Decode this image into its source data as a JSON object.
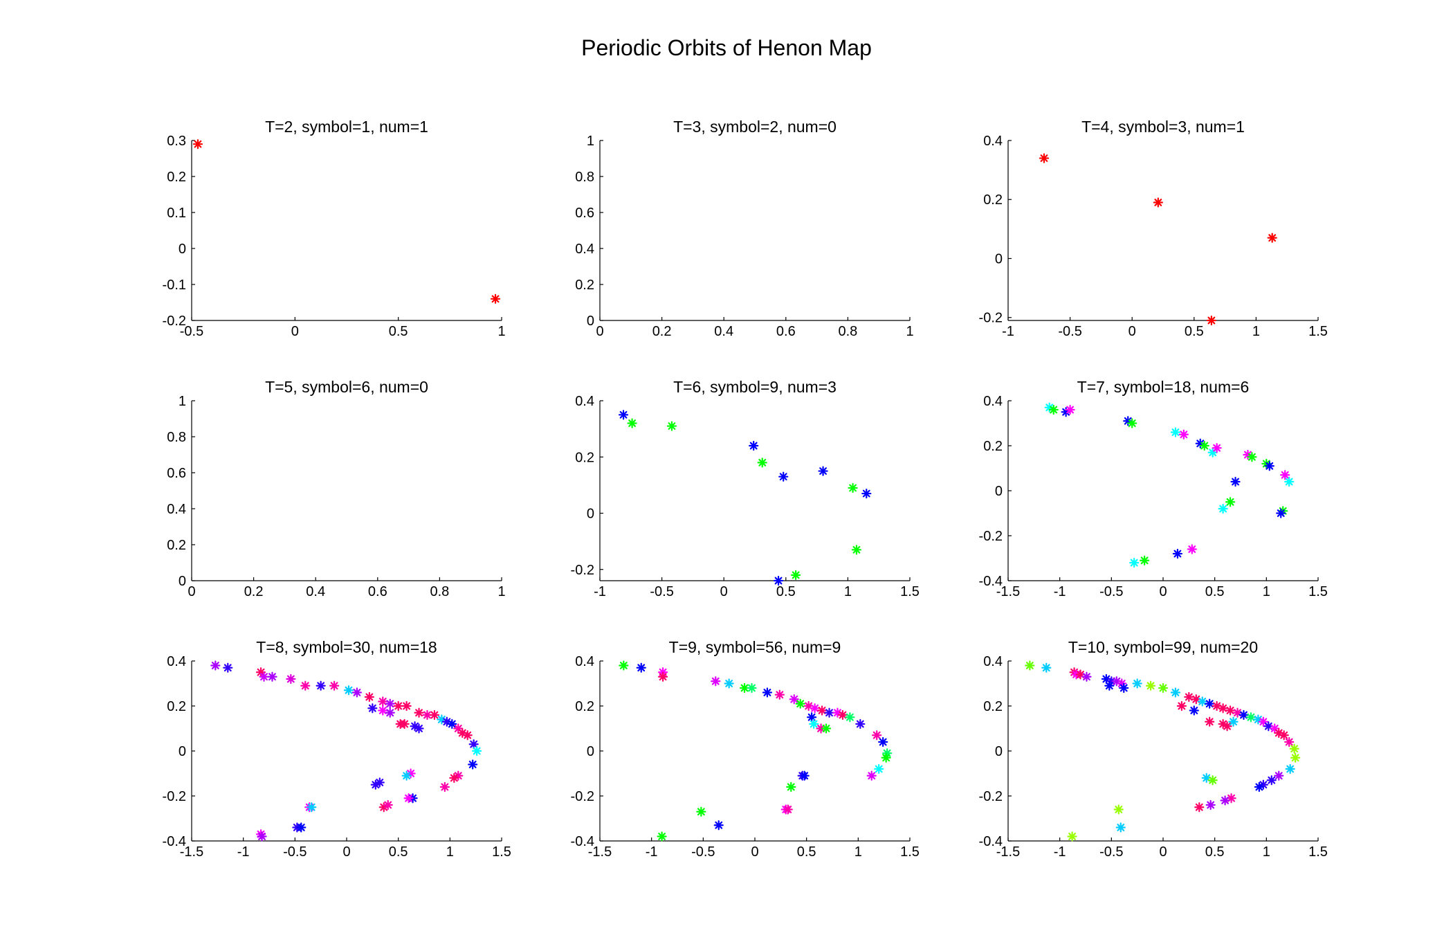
{
  "figure": {
    "title": "Periodic Orbits of Henon Map"
  },
  "chart_data": [
    {
      "type": "scatter",
      "title": "T=2, symbol=1, num=1",
      "xlim": [
        -0.5,
        1
      ],
      "ylim": [
        -0.2,
        0.3
      ],
      "xticks": [
        -0.5,
        0,
        0.5,
        1
      ],
      "yticks": [
        -0.2,
        -0.1,
        0,
        0.1,
        0.2,
        0.3
      ],
      "points": [
        [
          -0.47,
          0.29,
          "#ff0000"
        ],
        [
          0.97,
          -0.14,
          "#ff0000"
        ]
      ]
    },
    {
      "type": "scatter",
      "title": "T=3, symbol=2, num=0",
      "xlim": [
        0,
        1
      ],
      "ylim": [
        0,
        1
      ],
      "xticks": [
        0,
        0.2,
        0.4,
        0.6,
        0.8,
        1
      ],
      "yticks": [
        0,
        0.2,
        0.4,
        0.6,
        0.8,
        1
      ],
      "points": []
    },
    {
      "type": "scatter",
      "title": "T=4, symbol=3, num=1",
      "xlim": [
        -1,
        1.5
      ],
      "ylim": [
        -0.21,
        0.4
      ],
      "xticks": [
        -1,
        -0.5,
        0,
        0.5,
        1,
        1.5
      ],
      "yticks": [
        -0.2,
        0,
        0.2,
        0.4
      ],
      "points": [
        [
          -0.71,
          0.34,
          "#ff0000"
        ],
        [
          0.21,
          0.19,
          "#ff0000"
        ],
        [
          1.13,
          0.07,
          "#ff0000"
        ],
        [
          0.64,
          -0.21,
          "#ff0000"
        ]
      ]
    },
    {
      "type": "scatter",
      "title": "T=5, symbol=6, num=0",
      "xlim": [
        0,
        1
      ],
      "ylim": [
        0,
        1
      ],
      "xticks": [
        0,
        0.2,
        0.4,
        0.6,
        0.8,
        1
      ],
      "yticks": [
        0,
        0.2,
        0.4,
        0.6,
        0.8,
        1
      ],
      "points": []
    },
    {
      "type": "scatter",
      "title": "T=6, symbol=9, num=3",
      "xlim": [
        -1,
        1.5
      ],
      "ylim": [
        -0.24,
        0.4
      ],
      "xticks": [
        -1,
        -0.5,
        0,
        0.5,
        1,
        1.5
      ],
      "yticks": [
        -0.2,
        0,
        0.2,
        0.4
      ],
      "points": [
        [
          -0.81,
          0.35,
          "#0000ff"
        ],
        [
          0.24,
          0.24,
          "#0000ff"
        ],
        [
          0.48,
          0.13,
          "#0000ff"
        ],
        [
          0.8,
          0.15,
          "#0000ff"
        ],
        [
          1.15,
          0.07,
          "#0000ff"
        ],
        [
          0.44,
          -0.24,
          "#0000ff"
        ],
        [
          -0.74,
          0.32,
          "#00ff00"
        ],
        [
          -0.42,
          0.31,
          "#00ff00"
        ],
        [
          0.31,
          0.18,
          "#00ff00"
        ],
        [
          1.04,
          0.09,
          "#00ff00"
        ],
        [
          1.07,
          -0.13,
          "#00ff00"
        ],
        [
          0.58,
          -0.22,
          "#00ff00"
        ]
      ]
    },
    {
      "type": "scatter",
      "title": "T=7, symbol=18, num=6",
      "xlim": [
        -1.5,
        1.5
      ],
      "ylim": [
        -0.4,
        0.4
      ],
      "xticks": [
        -1.5,
        -1,
        -0.5,
        0,
        0.5,
        1,
        1.5
      ],
      "yticks": [
        -0.4,
        -0.2,
        0,
        0.2,
        0.4
      ],
      "points": [
        [
          -1.1,
          0.37,
          "#00ffff"
        ],
        [
          -1.06,
          0.36,
          "#00ff00"
        ],
        [
          -0.94,
          0.35,
          "#0000ff"
        ],
        [
          -0.9,
          0.36,
          "#ff00ff"
        ],
        [
          -0.34,
          0.31,
          "#0000ff"
        ],
        [
          -0.3,
          0.3,
          "#00ff00"
        ],
        [
          0.12,
          0.26,
          "#00ffff"
        ],
        [
          0.2,
          0.25,
          "#ff00ff"
        ],
        [
          0.36,
          0.21,
          "#0000ff"
        ],
        [
          0.4,
          0.2,
          "#00ff00"
        ],
        [
          0.48,
          0.17,
          "#00ffff"
        ],
        [
          0.52,
          0.19,
          "#ff00ff"
        ],
        [
          0.82,
          0.16,
          "#ff00ff"
        ],
        [
          0.86,
          0.15,
          "#00ff00"
        ],
        [
          1.0,
          0.12,
          "#00ff00"
        ],
        [
          1.03,
          0.11,
          "#0000ff"
        ],
        [
          1.18,
          0.07,
          "#ff00ff"
        ],
        [
          1.22,
          0.04,
          "#00ffff"
        ],
        [
          0.7,
          0.04,
          "#0000ff"
        ],
        [
          0.65,
          -0.05,
          "#00ff00"
        ],
        [
          0.58,
          -0.08,
          "#00ffff"
        ],
        [
          1.16,
          -0.09,
          "#00ff00"
        ],
        [
          1.14,
          -0.1,
          "#0000ff"
        ],
        [
          0.14,
          -0.28,
          "#0000ff"
        ],
        [
          0.28,
          -0.26,
          "#ff00ff"
        ],
        [
          -0.18,
          -0.31,
          "#00ff00"
        ],
        [
          -0.28,
          -0.32,
          "#00ffff"
        ]
      ]
    },
    {
      "type": "scatter",
      "title": "T=8, symbol=30, num=18",
      "xlim": [
        -1.5,
        1.5
      ],
      "ylim": [
        -0.4,
        0.4
      ],
      "xticks": [
        -1.5,
        -1,
        -0.5,
        0,
        0.5,
        1,
        1.5
      ],
      "yticks": [
        -0.4,
        -0.2,
        0,
        0.2,
        0.4
      ],
      "points": [
        [
          -1.27,
          0.38,
          "#aa00ff"
        ],
        [
          -1.15,
          0.37,
          "#3300ff"
        ],
        [
          -0.83,
          0.35,
          "#ff0066"
        ],
        [
          -0.8,
          0.33,
          "#cc00ff"
        ],
        [
          -0.72,
          0.33,
          "#aa00ff"
        ],
        [
          -0.54,
          0.32,
          "#dd00dd"
        ],
        [
          -0.4,
          0.29,
          "#ff00aa"
        ],
        [
          -0.25,
          0.29,
          "#3300ff"
        ],
        [
          -0.12,
          0.29,
          "#ff00aa"
        ],
        [
          0.02,
          0.27,
          "#00ccff"
        ],
        [
          0.1,
          0.26,
          "#aa00ff"
        ],
        [
          0.22,
          0.24,
          "#ff0066"
        ],
        [
          0.35,
          0.22,
          "#ff00aa"
        ],
        [
          0.42,
          0.21,
          "#aa00ff"
        ],
        [
          0.5,
          0.2,
          "#ff0066"
        ],
        [
          0.58,
          0.2,
          "#ff0066"
        ],
        [
          0.25,
          0.19,
          "#3300ff"
        ],
        [
          0.35,
          0.18,
          "#ff00ff"
        ],
        [
          0.42,
          0.17,
          "#aa00ff"
        ],
        [
          0.7,
          0.17,
          "#ff0066"
        ],
        [
          0.78,
          0.16,
          "#ff00aa"
        ],
        [
          0.85,
          0.16,
          "#ff0066"
        ],
        [
          0.92,
          0.14,
          "#00ccff"
        ],
        [
          0.97,
          0.13,
          "#3300ff"
        ],
        [
          1.02,
          0.12,
          "#0000ff"
        ],
        [
          1.08,
          0.1,
          "#ff00aa"
        ],
        [
          1.12,
          0.08,
          "#ff0066"
        ],
        [
          1.17,
          0.07,
          "#ff0066"
        ],
        [
          0.52,
          0.12,
          "#ff0066"
        ],
        [
          0.56,
          0.12,
          "#ff0066"
        ],
        [
          0.66,
          0.11,
          "#3300ff"
        ],
        [
          0.7,
          0.1,
          "#3300ff"
        ],
        [
          1.23,
          0.03,
          "#3300ff"
        ],
        [
          1.26,
          0.0,
          "#00ffff"
        ],
        [
          1.22,
          -0.06,
          "#0000ff"
        ],
        [
          1.08,
          -0.11,
          "#ff00aa"
        ],
        [
          1.04,
          -0.12,
          "#ff0066"
        ],
        [
          0.95,
          -0.16,
          "#ff00aa"
        ],
        [
          0.62,
          -0.1,
          "#ff00ff"
        ],
        [
          0.58,
          -0.11,
          "#00ccff"
        ],
        [
          0.32,
          -0.14,
          "#3300ff"
        ],
        [
          0.28,
          -0.15,
          "#3300ff"
        ],
        [
          0.64,
          -0.21,
          "#0000ff"
        ],
        [
          0.6,
          -0.21,
          "#ff00ff"
        ],
        [
          0.36,
          -0.25,
          "#ff0066"
        ],
        [
          0.4,
          -0.24,
          "#ff00aa"
        ],
        [
          -0.36,
          -0.25,
          "#ff00ff"
        ],
        [
          -0.34,
          -0.25,
          "#00ccff"
        ],
        [
          -0.48,
          -0.34,
          "#3300ff"
        ],
        [
          -0.44,
          -0.34,
          "#0000ff"
        ],
        [
          -0.83,
          -0.37,
          "#ff00ff"
        ],
        [
          -0.82,
          -0.38,
          "#aa00ff"
        ]
      ]
    },
    {
      "type": "scatter",
      "title": "T=9, symbol=56, num=9",
      "xlim": [
        -1.5,
        1.5
      ],
      "ylim": [
        -0.4,
        0.4
      ],
      "xticks": [
        -1.5,
        -1,
        -0.5,
        0,
        0.5,
        1,
        1.5
      ],
      "yticks": [
        -0.4,
        -0.2,
        0,
        0.2,
        0.4
      ],
      "points": [
        [
          -1.27,
          0.38,
          "#00ff00"
        ],
        [
          -1.1,
          0.37,
          "#0000ff"
        ],
        [
          -0.89,
          0.35,
          "#ff00ff"
        ],
        [
          -0.89,
          0.33,
          "#ff0066"
        ],
        [
          -0.38,
          0.31,
          "#dd00ff"
        ],
        [
          -0.25,
          0.3,
          "#00ccff"
        ],
        [
          -0.1,
          0.28,
          "#00ff00"
        ],
        [
          -0.03,
          0.28,
          "#00ff66"
        ],
        [
          0.12,
          0.26,
          "#0000ff"
        ],
        [
          0.24,
          0.25,
          "#ff00aa"
        ],
        [
          0.38,
          0.23,
          "#dd00ff"
        ],
        [
          0.44,
          0.21,
          "#00ff00"
        ],
        [
          0.52,
          0.2,
          "#ff00aa"
        ],
        [
          0.58,
          0.19,
          "#ff00ff"
        ],
        [
          0.65,
          0.18,
          "#ff0066"
        ],
        [
          0.72,
          0.17,
          "#3300ff"
        ],
        [
          0.8,
          0.17,
          "#ff00ff"
        ],
        [
          0.85,
          0.16,
          "#ff0066"
        ],
        [
          0.92,
          0.15,
          "#00ff66"
        ],
        [
          1.02,
          0.12,
          "#3300ff"
        ],
        [
          0.55,
          0.15,
          "#0000ff"
        ],
        [
          0.57,
          0.12,
          "#00ffff"
        ],
        [
          0.64,
          0.1,
          "#ff00aa"
        ],
        [
          0.69,
          0.1,
          "#00ff00"
        ],
        [
          1.18,
          0.07,
          "#ff00aa"
        ],
        [
          1.24,
          0.04,
          "#0000ff"
        ],
        [
          1.28,
          -0.01,
          "#00ff66"
        ],
        [
          1.27,
          -0.03,
          "#00ff00"
        ],
        [
          1.2,
          -0.08,
          "#00ffff"
        ],
        [
          1.13,
          -0.11,
          "#dd00ff"
        ],
        [
          0.46,
          -0.11,
          "#3300ff"
        ],
        [
          0.48,
          -0.11,
          "#0000ff"
        ],
        [
          0.35,
          -0.16,
          "#00ff00"
        ],
        [
          0.3,
          -0.26,
          "#ff00ff"
        ],
        [
          0.32,
          -0.26,
          "#ff00aa"
        ],
        [
          -0.52,
          -0.27,
          "#00ff00"
        ],
        [
          -0.35,
          -0.33,
          "#0000ff"
        ],
        [
          -0.9,
          -0.38,
          "#00ff00"
        ]
      ]
    },
    {
      "type": "scatter",
      "title": "T=10, symbol=99, num=20",
      "xlim": [
        -1.5,
        1.5
      ],
      "ylim": [
        -0.4,
        0.4
      ],
      "xticks": [
        -1.5,
        -1,
        -0.5,
        0,
        0.5,
        1,
        1.5
      ],
      "yticks": [
        -0.4,
        -0.2,
        0,
        0.2,
        0.4
      ],
      "points": [
        [
          -1.29,
          0.38,
          "#66ff00"
        ],
        [
          -1.13,
          0.37,
          "#00ccff"
        ],
        [
          -0.86,
          0.35,
          "#ff0066"
        ],
        [
          -0.84,
          0.34,
          "#ff00ff"
        ],
        [
          -0.8,
          0.34,
          "#ff0066"
        ],
        [
          -0.74,
          0.33,
          "#aa00ff"
        ],
        [
          -0.55,
          0.32,
          "#0000ff"
        ],
        [
          -0.5,
          0.31,
          "#3300ff"
        ],
        [
          -0.45,
          0.31,
          "#aa00ff"
        ],
        [
          -0.4,
          0.3,
          "#dd00ff"
        ],
        [
          -0.52,
          0.29,
          "#0000ff"
        ],
        [
          -0.38,
          0.28,
          "#0000ff"
        ],
        [
          -0.25,
          0.3,
          "#00ccff"
        ],
        [
          -0.12,
          0.29,
          "#99ff00"
        ],
        [
          0.0,
          0.28,
          "#66ff00"
        ],
        [
          0.12,
          0.26,
          "#00ccff"
        ],
        [
          0.25,
          0.24,
          "#ff0066"
        ],
        [
          0.32,
          0.23,
          "#ff0066"
        ],
        [
          0.38,
          0.22,
          "#00ccff"
        ],
        [
          0.45,
          0.21,
          "#0000ff"
        ],
        [
          0.52,
          0.2,
          "#ff0066"
        ],
        [
          0.58,
          0.19,
          "#ff0066"
        ],
        [
          0.65,
          0.18,
          "#ff0066"
        ],
        [
          0.72,
          0.17,
          "#ff00aa"
        ],
        [
          0.78,
          0.16,
          "#0000ff"
        ],
        [
          0.85,
          0.15,
          "#00ff66"
        ],
        [
          0.92,
          0.14,
          "#00ccff"
        ],
        [
          0.97,
          0.13,
          "#ff00ff"
        ],
        [
          1.02,
          0.11,
          "#3300ff"
        ],
        [
          1.08,
          0.1,
          "#ff00ff"
        ],
        [
          1.12,
          0.08,
          "#ff0066"
        ],
        [
          1.17,
          0.07,
          "#ff0066"
        ],
        [
          0.18,
          0.2,
          "#ff0066"
        ],
        [
          0.3,
          0.18,
          "#0000ff"
        ],
        [
          0.45,
          0.13,
          "#ff0066"
        ],
        [
          0.58,
          0.12,
          "#ff0066"
        ],
        [
          0.62,
          0.11,
          "#ff0066"
        ],
        [
          0.68,
          0.13,
          "#00ccff"
        ],
        [
          1.22,
          0.04,
          "#ff00aa"
        ],
        [
          1.27,
          0.01,
          "#99ff00"
        ],
        [
          1.28,
          -0.03,
          "#99ff00"
        ],
        [
          1.23,
          -0.08,
          "#00ccff"
        ],
        [
          1.12,
          -0.11,
          "#aa00ff"
        ],
        [
          1.05,
          -0.13,
          "#3300ff"
        ],
        [
          0.97,
          -0.15,
          "#3300ff"
        ],
        [
          0.93,
          -0.16,
          "#0000ff"
        ],
        [
          0.42,
          -0.12,
          "#00ccff"
        ],
        [
          0.48,
          -0.13,
          "#66ff00"
        ],
        [
          0.66,
          -0.21,
          "#ff00aa"
        ],
        [
          0.6,
          -0.22,
          "#aa00ff"
        ],
        [
          0.46,
          -0.24,
          "#aa00ff"
        ],
        [
          0.35,
          -0.25,
          "#ff0066"
        ],
        [
          -0.43,
          -0.26,
          "#99ff00"
        ],
        [
          -0.41,
          -0.34,
          "#00ccff"
        ],
        [
          -0.88,
          -0.38,
          "#99ff00"
        ]
      ]
    }
  ]
}
